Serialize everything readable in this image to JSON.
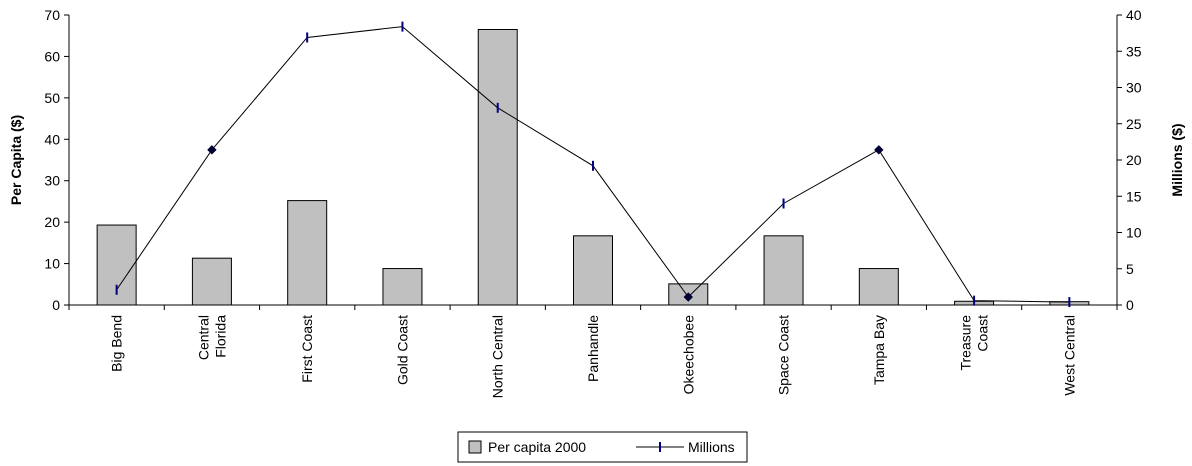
{
  "chart_data": {
    "type": "bar",
    "categories": [
      "Big Bend",
      "Central\nFlorida",
      "First Coast",
      "Gold Coast",
      "North Central",
      "Panhandle",
      "Okeechobee",
      "Space Coast",
      "Tampa Bay",
      "Treasure\nCoast",
      "West Central"
    ],
    "series": [
      {
        "name": "Per capita 2000",
        "type": "bar",
        "axis": "left",
        "color": "#c0c0c0",
        "values": [
          19.3,
          11.3,
          25.2,
          8.8,
          66.5,
          16.7,
          5.1,
          16.7,
          8.8,
          0.9,
          0.8
        ]
      },
      {
        "name": "Millions",
        "type": "line",
        "axis": "right",
        "color": "#000080",
        "values": [
          2.1,
          21.4,
          36.9,
          38.4,
          27.2,
          19.2,
          1.1,
          14.0,
          21.4,
          0.6,
          0.4
        ]
      }
    ],
    "ylabel_left": "Per Capita ($)",
    "ylabel_right": "Millions ($)",
    "ylim_left": [
      0,
      70
    ],
    "ylim_right": [
      0,
      40
    ],
    "yticks_left": [
      0,
      10,
      20,
      30,
      40,
      50,
      60,
      70
    ],
    "yticks_right": [
      0,
      5,
      10,
      15,
      20,
      25,
      30,
      35,
      40
    ],
    "diamond_markers_on": [
      "Central\nFlorida",
      "Okeechobee",
      "Tampa Bay"
    ],
    "grid": false,
    "legend_position": "bottom"
  }
}
